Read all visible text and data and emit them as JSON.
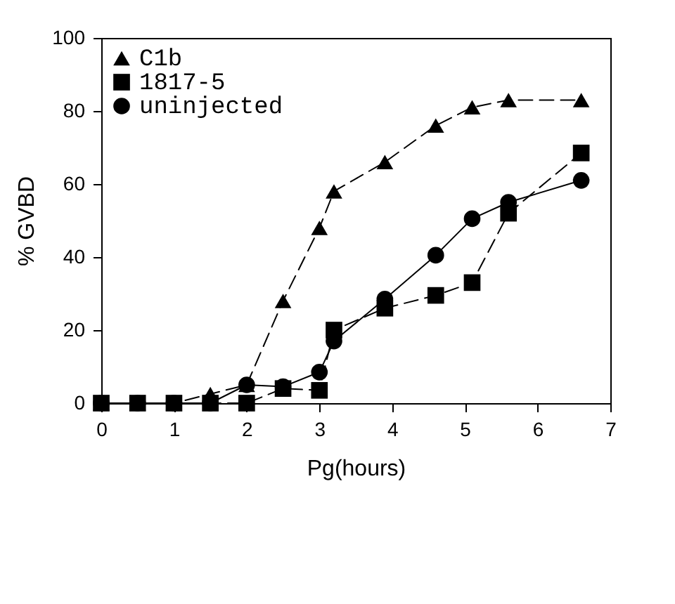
{
  "chart_data": {
    "type": "line",
    "xlabel": "Pg(hours)",
    "ylabel": "% GVBD",
    "x": [
      0,
      0.5,
      1,
      1.5,
      2,
      2.5,
      3,
      3.2,
      3.9,
      4.6,
      5.1,
      5.6,
      6.6
    ],
    "series": [
      {
        "name": "C1b",
        "color": "#000000",
        "marker": "triangle",
        "line_style": "dashed",
        "values": [
          0,
          0,
          0,
          2.5,
          5,
          28,
          48,
          58,
          66,
          76,
          81,
          83,
          83
        ]
      },
      {
        "name": "1817-5",
        "color": "#000000",
        "marker": "square",
        "line_style": "dashed",
        "values": [
          0,
          0,
          0,
          0,
          0,
          4,
          3.5,
          20,
          26,
          29.5,
          33,
          52,
          68.5
        ]
      },
      {
        "name": "uninjected",
        "color": "#000000",
        "marker": "circle",
        "line_style": "solid",
        "values": [
          0,
          0,
          0,
          0,
          5,
          4.5,
          8.5,
          17,
          28.5,
          40.5,
          50.5,
          55,
          61
        ]
      }
    ],
    "xlim": [
      0,
      7
    ],
    "xticks": [
      0,
      1,
      2,
      3,
      4,
      5,
      6,
      7
    ],
    "ylim": [
      0,
      100
    ],
    "yticks": [
      0,
      20,
      40,
      60,
      80,
      100
    ],
    "grid": false,
    "legend": "top left"
  }
}
